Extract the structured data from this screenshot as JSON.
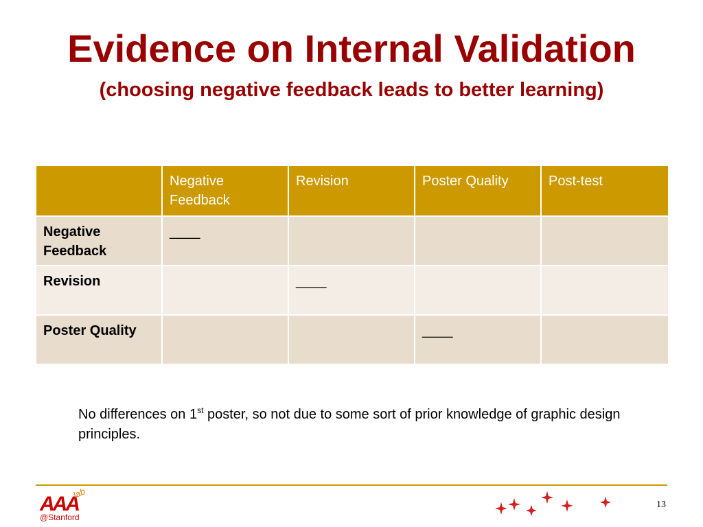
{
  "slide": {
    "title": "Evidence on Internal Validation",
    "subtitle": "(choosing negative feedback leads to better learning)"
  },
  "table": {
    "header": [
      "",
      "Negative Feedback",
      "Revision",
      "Poster Quality",
      "Post-test"
    ],
    "rows": [
      {
        "label": "Negative Feedback",
        "cells": [
          "____",
          "",
          "",
          ""
        ]
      },
      {
        "label": "Revision",
        "cells": [
          "",
          "____",
          "",
          ""
        ]
      },
      {
        "label": "Poster Quality",
        "cells": [
          "",
          "",
          "____",
          ""
        ]
      }
    ]
  },
  "note": {
    "text_before": "No differences on 1",
    "superscript": "st",
    "text_after": " poster, so not due to some sort of prior knowledge of graphic design principles."
  },
  "footer": {
    "logo_text": "AAA",
    "logo_superscript": "lab",
    "logo_subtitle": "@Stanford",
    "page_number": "13",
    "logo_icon": "aaa-lab-logo",
    "decoration_icon": "sparkle-stars"
  },
  "colors": {
    "title": "#990000",
    "header_bg": "#cc9900",
    "row_odd": "#e8ddcc",
    "row_even": "#f4ede6",
    "footer_line": "#cc9900",
    "logo_red": "#cc0000",
    "logo_orange": "#e07a10",
    "star_red": "#d42020"
  }
}
